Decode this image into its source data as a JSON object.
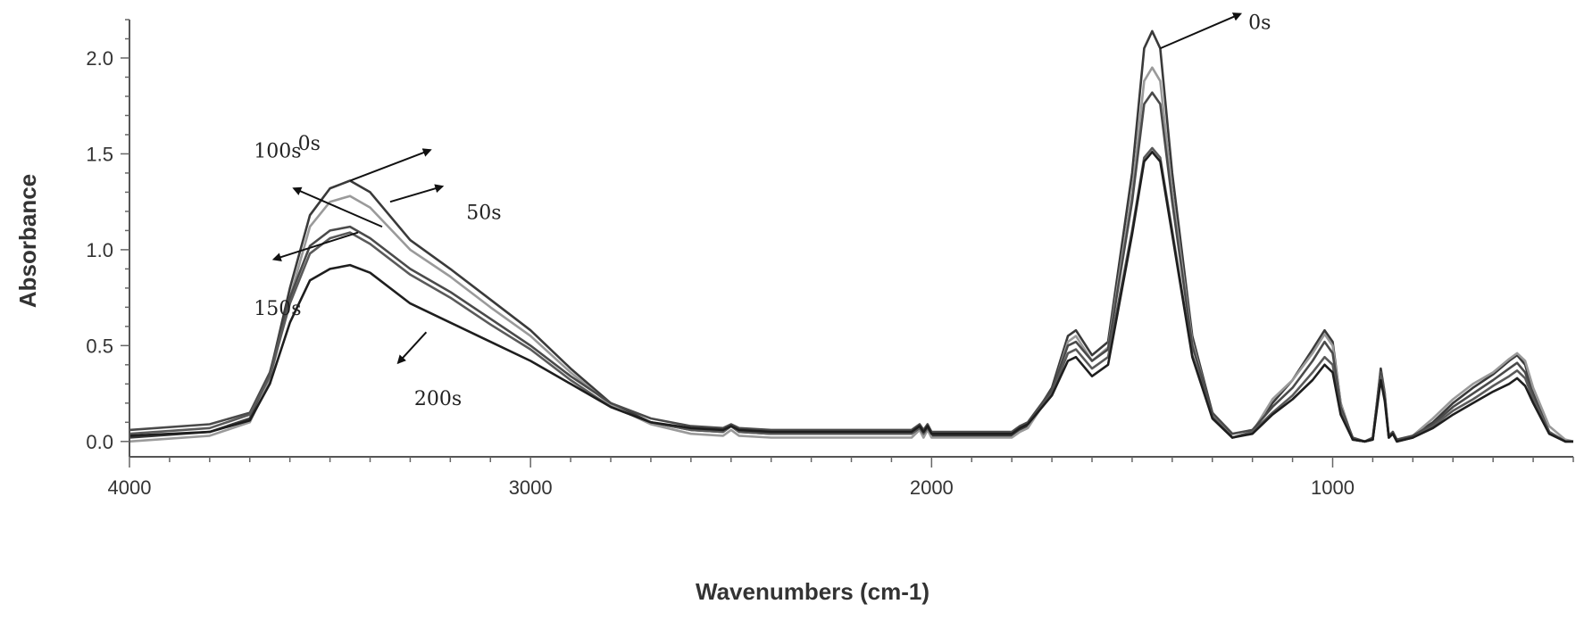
{
  "chart_data": {
    "type": "line",
    "title": "",
    "xlabel": "Wavenumbers (cm-1)",
    "ylabel": "Absorbance",
    "xlim": [
      4000,
      400
    ],
    "ylim": [
      -0.08,
      2.2
    ],
    "x_reversed": true,
    "grid": false,
    "x_ticks": [
      {
        "value": 4000,
        "label": "4000"
      },
      {
        "value": 3000,
        "label": "3000"
      },
      {
        "value": 2000,
        "label": "2000"
      },
      {
        "value": 1000,
        "label": "1000"
      }
    ],
    "y_ticks": [
      {
        "value": 0.0,
        "label": "0.0"
      },
      {
        "value": 0.5,
        "label": "0.5"
      },
      {
        "value": 1.0,
        "label": "1.0"
      },
      {
        "value": 1.5,
        "label": "1.5"
      },
      {
        "value": 2.0,
        "label": "2.0"
      }
    ],
    "x": [
      4000,
      3800,
      3700,
      3650,
      3600,
      3550,
      3500,
      3450,
      3400,
      3300,
      3200,
      3100,
      3000,
      2900,
      2800,
      2700,
      2600,
      2520,
      2500,
      2480,
      2400,
      2200,
      2050,
      2030,
      2020,
      2010,
      2000,
      1900,
      1800,
      1780,
      1760,
      1700,
      1660,
      1640,
      1600,
      1560,
      1500,
      1470,
      1450,
      1430,
      1400,
      1350,
      1300,
      1250,
      1200,
      1150,
      1100,
      1050,
      1020,
      1000,
      980,
      950,
      920,
      900,
      880,
      870,
      860,
      850,
      840,
      800,
      750,
      700,
      650,
      600,
      560,
      540,
      520,
      500,
      460,
      420,
      400
    ],
    "series": [
      {
        "name": "0s",
        "values": [
          0.02,
          0.05,
          0.12,
          0.35,
          0.8,
          1.18,
          1.32,
          1.36,
          1.3,
          1.05,
          0.9,
          0.74,
          0.58,
          0.38,
          0.2,
          0.1,
          0.06,
          0.05,
          0.08,
          0.05,
          0.04,
          0.04,
          0.04,
          0.07,
          0.04,
          0.07,
          0.03,
          0.03,
          0.03,
          0.06,
          0.08,
          0.28,
          0.55,
          0.58,
          0.45,
          0.52,
          1.4,
          2.05,
          2.14,
          2.05,
          1.4,
          0.55,
          0.15,
          0.02,
          0.05,
          0.2,
          0.32,
          0.48,
          0.58,
          0.52,
          0.2,
          0.01,
          0.0,
          0.01,
          0.38,
          0.25,
          0.02,
          0.05,
          0.0,
          0.03,
          0.1,
          0.2,
          0.28,
          0.35,
          0.42,
          0.45,
          0.4,
          0.25,
          0.05,
          0.0,
          0.0
        ]
      },
      {
        "name": "50s",
        "values": [
          0.0,
          0.03,
          0.1,
          0.32,
          0.75,
          1.12,
          1.25,
          1.28,
          1.22,
          1.0,
          0.86,
          0.7,
          0.55,
          0.36,
          0.19,
          0.09,
          0.04,
          0.03,
          0.06,
          0.03,
          0.02,
          0.02,
          0.02,
          0.06,
          0.02,
          0.06,
          0.02,
          0.02,
          0.02,
          0.05,
          0.07,
          0.26,
          0.52,
          0.55,
          0.42,
          0.49,
          1.3,
          1.88,
          1.95,
          1.88,
          1.3,
          0.52,
          0.14,
          0.02,
          0.05,
          0.22,
          0.32,
          0.46,
          0.56,
          0.5,
          0.2,
          0.01,
          0.0,
          0.01,
          0.36,
          0.24,
          0.02,
          0.05,
          0.0,
          0.03,
          0.12,
          0.22,
          0.3,
          0.36,
          0.43,
          0.46,
          0.42,
          0.28,
          0.08,
          0.01,
          0.0
        ]
      },
      {
        "name": "100s",
        "values": [
          0.06,
          0.09,
          0.15,
          0.36,
          0.75,
          1.02,
          1.1,
          1.12,
          1.06,
          0.9,
          0.78,
          0.64,
          0.5,
          0.34,
          0.2,
          0.12,
          0.08,
          0.07,
          0.09,
          0.07,
          0.06,
          0.06,
          0.06,
          0.09,
          0.06,
          0.09,
          0.05,
          0.05,
          0.05,
          0.08,
          0.1,
          0.27,
          0.5,
          0.52,
          0.42,
          0.48,
          1.25,
          1.76,
          1.82,
          1.76,
          1.25,
          0.5,
          0.15,
          0.04,
          0.06,
          0.18,
          0.28,
          0.42,
          0.52,
          0.46,
          0.18,
          0.02,
          0.0,
          0.02,
          0.36,
          0.23,
          0.03,
          0.05,
          0.01,
          0.03,
          0.09,
          0.18,
          0.25,
          0.32,
          0.38,
          0.41,
          0.36,
          0.24,
          0.05,
          0.0,
          0.0
        ]
      },
      {
        "name": "150s",
        "values": [
          0.04,
          0.07,
          0.14,
          0.34,
          0.72,
          0.98,
          1.06,
          1.09,
          1.03,
          0.87,
          0.75,
          0.61,
          0.48,
          0.32,
          0.18,
          0.1,
          0.06,
          0.05,
          0.08,
          0.05,
          0.04,
          0.04,
          0.04,
          0.07,
          0.04,
          0.07,
          0.04,
          0.04,
          0.04,
          0.07,
          0.09,
          0.25,
          0.46,
          0.48,
          0.38,
          0.44,
          1.1,
          1.48,
          1.53,
          1.48,
          1.1,
          0.45,
          0.13,
          0.02,
          0.05,
          0.15,
          0.24,
          0.36,
          0.44,
          0.4,
          0.16,
          0.01,
          0.0,
          0.01,
          0.34,
          0.22,
          0.02,
          0.04,
          0.0,
          0.02,
          0.08,
          0.16,
          0.22,
          0.29,
          0.34,
          0.37,
          0.33,
          0.22,
          0.05,
          0.0,
          0.0
        ]
      },
      {
        "name": "200s",
        "values": [
          0.03,
          0.05,
          0.11,
          0.3,
          0.62,
          0.84,
          0.9,
          0.92,
          0.88,
          0.72,
          0.62,
          0.52,
          0.42,
          0.3,
          0.18,
          0.1,
          0.07,
          0.06,
          0.08,
          0.06,
          0.05,
          0.05,
          0.05,
          0.08,
          0.05,
          0.08,
          0.04,
          0.04,
          0.04,
          0.07,
          0.09,
          0.24,
          0.42,
          0.44,
          0.34,
          0.4,
          1.08,
          1.46,
          1.51,
          1.46,
          1.08,
          0.44,
          0.12,
          0.02,
          0.04,
          0.14,
          0.22,
          0.32,
          0.4,
          0.36,
          0.14,
          0.01,
          0.0,
          0.01,
          0.32,
          0.21,
          0.02,
          0.04,
          0.0,
          0.02,
          0.07,
          0.14,
          0.2,
          0.26,
          0.3,
          0.33,
          0.29,
          0.2,
          0.04,
          0.0,
          0.0
        ]
      }
    ],
    "series_colors": [
      "#3a3a3a",
      "#9a9a9a",
      "#4a4a4a",
      "#5a5a5a",
      "#1e1e1e"
    ],
    "annotations": [
      {
        "label": "0s",
        "text_x": 3580,
        "text_y": 1.52,
        "arrow_from": [
          3450,
          1.36
        ],
        "arrow_to": [
          3250,
          1.52
        ]
      },
      {
        "label": "50s",
        "text_x": 3160,
        "text_y": 1.16,
        "arrow_from": [
          3350,
          1.25
        ],
        "arrow_to": [
          3220,
          1.33
        ]
      },
      {
        "label": "100s",
        "text_x": 3690,
        "text_y": 1.48,
        "arrow_from": [
          3370,
          1.12
        ],
        "arrow_to": [
          3590,
          1.32
        ]
      },
      {
        "label": "150s",
        "text_x": 3690,
        "text_y": 0.66,
        "arrow_from": [
          3430,
          1.09
        ],
        "arrow_to": [
          3640,
          0.95
        ]
      },
      {
        "label": "200s",
        "text_x": 3290,
        "text_y": 0.19,
        "arrow_from": [
          3260,
          0.57
        ],
        "arrow_to": [
          3330,
          0.41
        ]
      },
      {
        "label": "0s",
        "text_x": 1210,
        "text_y": 2.15,
        "arrow_from": [
          1430,
          2.05
        ],
        "arrow_to": [
          1230,
          2.23
        ]
      }
    ]
  }
}
